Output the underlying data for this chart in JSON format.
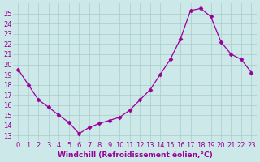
{
  "x": [
    0,
    1,
    2,
    3,
    4,
    5,
    6,
    7,
    8,
    9,
    10,
    11,
    12,
    13,
    14,
    15,
    16,
    17,
    18,
    19,
    20,
    21,
    22,
    23
  ],
  "y": [
    19.5,
    18.0,
    16.5,
    15.8,
    15.0,
    14.3,
    13.2,
    13.8,
    14.2,
    14.5,
    14.8,
    15.5,
    16.5,
    17.5,
    19.0,
    20.5,
    22.5,
    25.3,
    25.5,
    24.7,
    22.2,
    21.0,
    20.5,
    19.2
  ],
  "line_color": "#990099",
  "marker": "D",
  "markersize": 2.5,
  "linewidth": 0.9,
  "bg_color": "#cce8e8",
  "grid_color": "#aacccc",
  "xlabel": "Windchill (Refroidissement éolien,°C)",
  "xlabel_fontsize": 6.5,
  "xlabel_color": "#990099",
  "yticks": [
    13,
    14,
    15,
    16,
    17,
    18,
    19,
    20,
    21,
    22,
    23,
    24,
    25
  ],
  "xlim": [
    -0.5,
    23.5
  ],
  "ylim": [
    12.5,
    26.0
  ],
  "tick_fontsize": 6.0,
  "tick_color": "#990099",
  "figsize": [
    3.2,
    2.0
  ],
  "dpi": 100
}
